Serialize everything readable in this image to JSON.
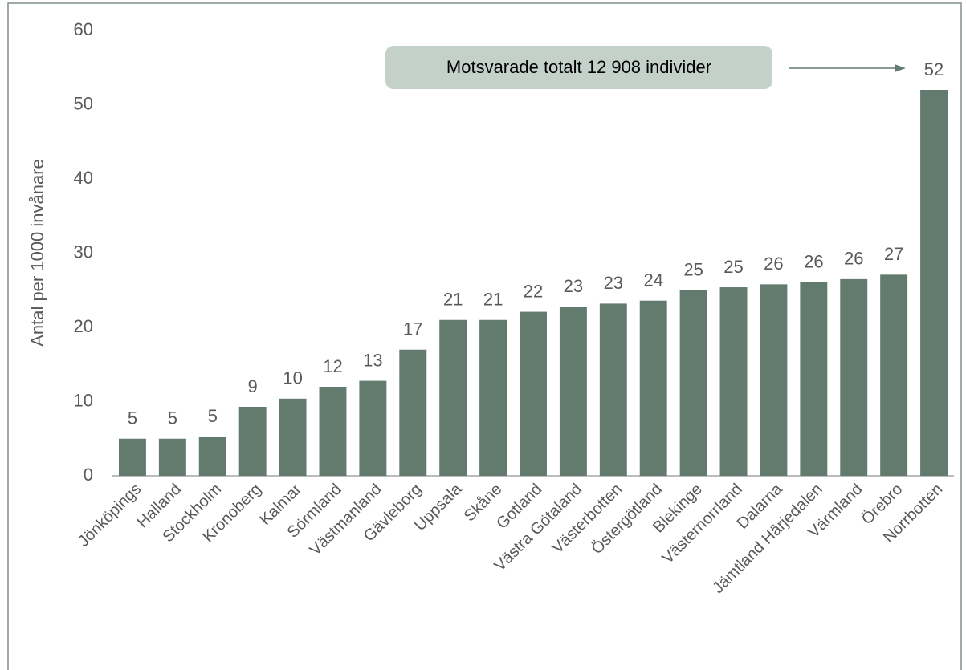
{
  "chart_data": {
    "type": "bar",
    "y_label": "Antal per 1000 invånare",
    "annotation": "Motsvarade totalt 12 908 individer",
    "categories": [
      "Jönköpings",
      "Halland",
      "Stockholm",
      "Kronoberg",
      "Kalmar",
      "Sörmland",
      "Västmanland",
      "Gävleborg",
      "Uppsala",
      "Skåne",
      "Gotland",
      "Västra Götaland",
      "Västerbotten",
      "Östergötland",
      "Blekinge",
      "Västernorrland",
      "Dalarna",
      "Jämtland Härjedalen",
      "Värmland",
      "Örebro",
      "Norrbotten"
    ],
    "values": [
      5.0,
      5.0,
      5.3,
      9.3,
      10.4,
      12.0,
      12.8,
      17.0,
      21.0,
      21.0,
      22.1,
      22.8,
      23.2,
      23.6,
      25.0,
      25.4,
      25.8,
      26.1,
      26.5,
      27.1,
      52.0
    ],
    "value_labels": [
      "5",
      "5",
      "5",
      "9",
      "10",
      "12",
      "13",
      "17",
      "21",
      "21",
      "22",
      "23",
      "23",
      "24",
      "25",
      "25",
      "26",
      "26",
      "26",
      "27",
      "52"
    ],
    "color": "#637a6f",
    "ylim": [
      0,
      60
    ],
    "yticks": [
      0,
      10,
      20,
      30,
      40,
      50,
      60
    ],
    "grid": false
  }
}
